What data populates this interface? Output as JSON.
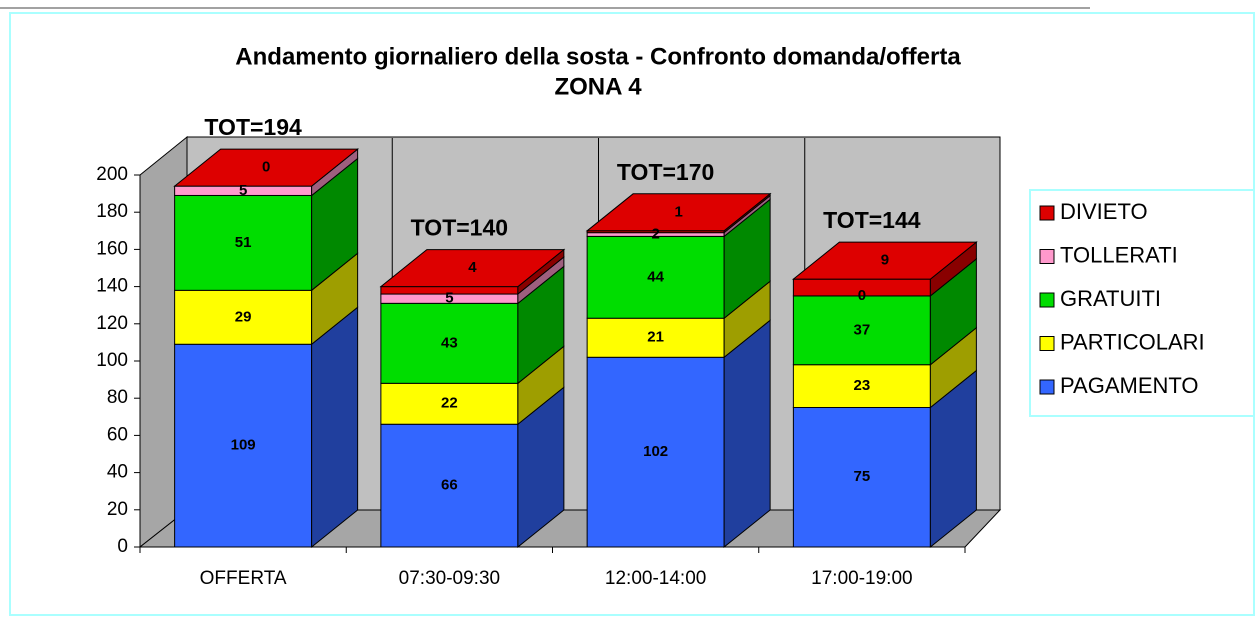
{
  "chart_data": {
    "type": "bar3d_stacked",
    "title": "Andamento giornaliero della sosta - Confronto domanda/offerta",
    "subtitle": "ZONA 4",
    "categories": [
      "OFFERTA",
      "07:30-09:30",
      "12:00-14:00",
      "17:00-19:00"
    ],
    "annotations": [
      "TOT=194",
      "TOT=140",
      "TOT=170",
      "TOT=144"
    ],
    "series": [
      {
        "name": "PAGAMENTO",
        "color": "#3366ff",
        "values": [
          109,
          66,
          102,
          75
        ]
      },
      {
        "name": "PARTICOLARI",
        "color": "#ffff00",
        "values": [
          29,
          22,
          21,
          23
        ]
      },
      {
        "name": "GRATUITI",
        "color": "#00dd00",
        "values": [
          51,
          43,
          44,
          37
        ]
      },
      {
        "name": "TOLLERATI",
        "color": "#ff99cc",
        "values": [
          5,
          5,
          2,
          0
        ]
      },
      {
        "name": "DIVIETO",
        "color": "#dd0000",
        "values": [
          0,
          4,
          1,
          9
        ]
      }
    ],
    "ylim": [
      0,
      200
    ],
    "yticks": [
      0,
      20,
      40,
      60,
      80,
      100,
      120,
      140,
      160,
      180,
      200
    ],
    "legend": "right"
  }
}
